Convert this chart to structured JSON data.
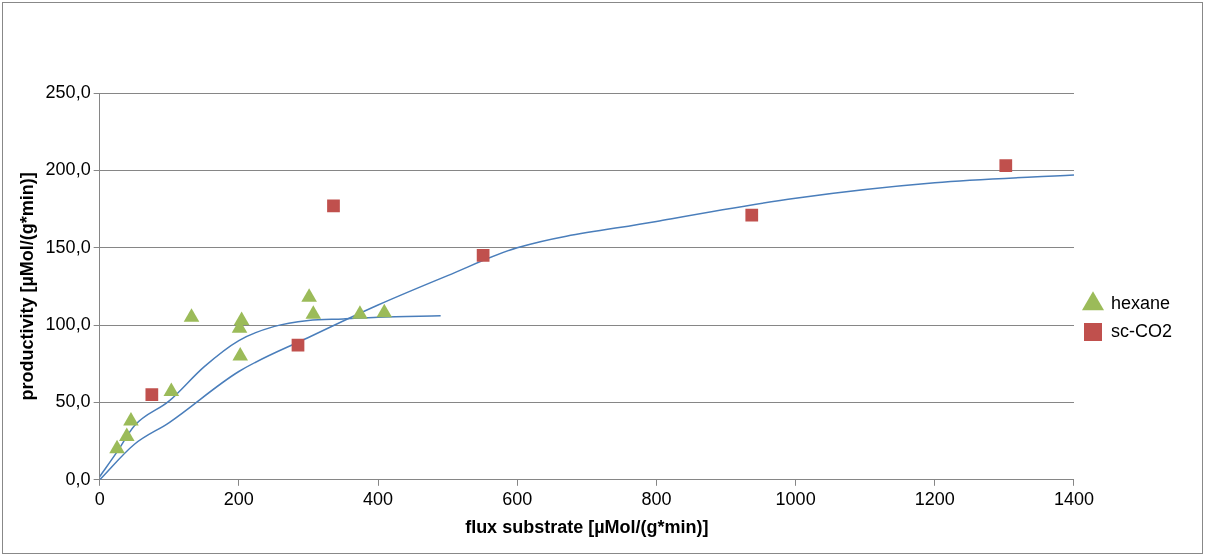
{
  "chart_data": {
    "type": "scatter",
    "xlabel": "flux substrate [µMol/(g*min)]",
    "ylabel": "productivity [µMol/(g*min)]",
    "xlim": [
      0,
      1400
    ],
    "xticks": [
      0,
      200,
      400,
      600,
      800,
      1000,
      1200,
      1400
    ],
    "ylim": [
      0,
      250
    ],
    "yticks": [
      {
        "value": 0,
        "label": "0,0"
      },
      {
        "value": 50,
        "label": "50,0"
      },
      {
        "value": 100,
        "label": "100,0"
      },
      {
        "value": 150,
        "label": "150,0"
      },
      {
        "value": 200,
        "label": "200,0"
      },
      {
        "value": 250,
        "label": "250,0"
      }
    ],
    "grid": "y",
    "legend": "right",
    "series": [
      {
        "name": "hexane",
        "color": "#9bbb59",
        "marker": "triangle",
        "x": [
          25,
          39,
          45,
          103,
          132,
          201,
          204,
          202,
          301,
          307,
          374,
          409
        ],
        "values": [
          20,
          28,
          38,
          57,
          105,
          98,
          103,
          80,
          118,
          107,
          107,
          108
        ]
      },
      {
        "name": "sc-CO2",
        "color": "#c0504d",
        "marker": "square",
        "x": [
          75,
          285,
          336,
          551,
          937,
          1302
        ],
        "values": [
          55,
          87,
          177,
          145,
          171,
          203
        ]
      },
      {
        "type": "line",
        "color": "#4a7ebb",
        "marker": "none",
        "x": [
          0,
          25,
          50,
          100,
          150,
          200,
          250,
          300,
          350,
          400,
          490
        ],
        "values": [
          2,
          18,
          35,
          51,
          73,
          90,
          99,
          103,
          104,
          105,
          106
        ]
      },
      {
        "type": "line",
        "color": "#4a7ebb",
        "marker": "none",
        "x": [
          0,
          50,
          100,
          200,
          300,
          400,
          500,
          600,
          800,
          1000,
          1200,
          1400
        ],
        "values": [
          0,
          23,
          37,
          70,
          92,
          113,
          132,
          150,
          167,
          182,
          192,
          197
        ]
      }
    ]
  }
}
